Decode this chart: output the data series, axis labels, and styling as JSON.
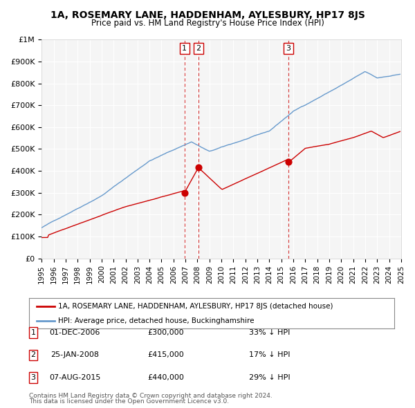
{
  "title": "1A, ROSEMARY LANE, HADDENHAM, AYLESBURY, HP17 8JS",
  "subtitle": "Price paid vs. HM Land Registry's House Price Index (HPI)",
  "legend_label_red": "1A, ROSEMARY LANE, HADDENHAM, AYLESBURY, HP17 8JS (detached house)",
  "legend_label_blue": "HPI: Average price, detached house, Buckinghamshire",
  "transactions": [
    {
      "num": 1,
      "date": "01-DEC-2006",
      "price": 300000,
      "hpi_diff": "33% ↓ HPI",
      "x_year": 2006.92
    },
    {
      "num": 2,
      "date": "25-JAN-2008",
      "price": 415000,
      "hpi_diff": "17% ↓ HPI",
      "x_year": 2008.07
    },
    {
      "num": 3,
      "date": "07-AUG-2015",
      "price": 440000,
      "hpi_diff": "29% ↓ HPI",
      "x_year": 2015.6
    }
  ],
  "footnote1": "Contains HM Land Registry data © Crown copyright and database right 2024.",
  "footnote2": "This data is licensed under the Open Government Licence v3.0.",
  "red_color": "#cc0000",
  "blue_color": "#6699cc",
  "background_color": "#ffffff",
  "plot_bg_color": "#f5f5f5",
  "grid_color": "#ffffff",
  "ylim": [
    0,
    1000000
  ],
  "xlim_start": 1995,
  "xlim_end": 2025
}
